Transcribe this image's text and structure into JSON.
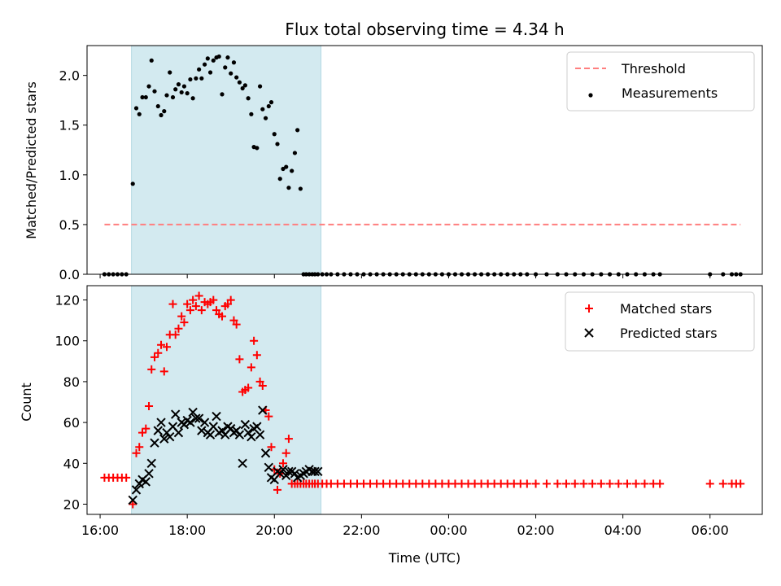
{
  "chart_data": [
    {
      "type": "scatter",
      "title": "Flux total observing time = 4.34 h",
      "xlabel": "",
      "ylabel": "Matched/Predicted stars",
      "x_unit": "hours since 16:00 UTC",
      "xlim": [
        -0.3,
        15.2
      ],
      "ylim": [
        0.0,
        2.3
      ],
      "y_ticks": [
        0.0,
        0.5,
        1.0,
        1.5,
        2.0
      ],
      "y_tick_labels": [
        "0.0",
        "0.5",
        "1.0",
        "1.5",
        "2.0"
      ],
      "x_ticks": [
        0,
        2,
        4,
        6,
        8,
        10,
        12,
        14
      ],
      "shaded_region": {
        "x_start": 0.72,
        "x_end": 5.07,
        "color": "#d3eaf0"
      },
      "legend_position": "top-right",
      "threshold": {
        "name": "Threshold",
        "y": 0.5,
        "x_start": 0.1,
        "x_end": 14.7,
        "color": "#ff7f7f",
        "style": "dashed"
      },
      "series": [
        {
          "name": "Measurements",
          "marker": "dot",
          "color": "#000000",
          "x": [
            0.1,
            0.2,
            0.3,
            0.4,
            0.5,
            0.6,
            0.75,
            0.83,
            0.9,
            0.97,
            1.05,
            1.12,
            1.18,
            1.25,
            1.33,
            1.4,
            1.47,
            1.53,
            1.6,
            1.67,
            1.73,
            1.8,
            1.87,
            1.93,
            2.0,
            2.07,
            2.13,
            2.2,
            2.27,
            2.33,
            2.4,
            2.47,
            2.53,
            2.6,
            2.67,
            2.73,
            2.8,
            2.87,
            2.93,
            3.0,
            3.07,
            3.13,
            3.2,
            3.27,
            3.33,
            3.4,
            3.47,
            3.53,
            3.6,
            3.67,
            3.73,
            3.8,
            3.87,
            3.93,
            4.0,
            4.07,
            4.13,
            4.2,
            4.27,
            4.33,
            4.4,
            4.47,
            4.53,
            4.6,
            4.67,
            4.73,
            4.8,
            4.87,
            4.93,
            5.0,
            5.1,
            5.2,
            5.3,
            5.45,
            5.6,
            5.75,
            5.9,
            6.05,
            6.2,
            6.35,
            6.5,
            6.65,
            6.8,
            6.95,
            7.1,
            7.25,
            7.4,
            7.55,
            7.7,
            7.85,
            8.0,
            8.15,
            8.3,
            8.45,
            8.6,
            8.75,
            8.9,
            9.05,
            9.2,
            9.35,
            9.5,
            9.65,
            9.8,
            10.0,
            10.25,
            10.5,
            10.7,
            10.9,
            11.1,
            11.3,
            11.5,
            11.7,
            11.9,
            12.1,
            12.3,
            12.5,
            12.7,
            12.85,
            14.0,
            14.3,
            14.5,
            14.6,
            14.7
          ],
          "y": [
            0,
            0,
            0,
            0,
            0,
            0,
            0.91,
            1.67,
            1.61,
            1.78,
            1.78,
            1.89,
            2.15,
            1.84,
            1.69,
            1.6,
            1.64,
            1.8,
            2.03,
            1.78,
            1.86,
            1.91,
            1.83,
            1.89,
            1.82,
            1.96,
            1.77,
            1.97,
            2.06,
            1.97,
            2.11,
            2.17,
            2.03,
            2.15,
            2.18,
            2.19,
            1.81,
            2.08,
            2.18,
            2.02,
            2.13,
            1.98,
            1.93,
            1.87,
            1.9,
            1.77,
            1.61,
            1.28,
            1.27,
            1.89,
            1.66,
            1.57,
            1.69,
            1.73,
            1.41,
            1.31,
            0.96,
            1.06,
            1.08,
            0.87,
            1.04,
            1.22,
            1.45,
            0.86,
            0,
            0,
            0,
            0,
            0,
            0,
            0,
            0,
            0,
            0,
            0,
            0,
            0,
            0,
            0,
            0,
            0,
            0,
            0,
            0,
            0,
            0,
            0,
            0,
            0,
            0,
            0,
            0,
            0,
            0,
            0,
            0,
            0,
            0,
            0,
            0,
            0,
            0,
            0,
            0,
            0,
            0,
            0,
            0,
            0,
            0,
            0,
            0,
            0,
            0,
            0,
            0,
            0,
            0,
            0,
            0,
            0,
            0,
            0
          ]
        }
      ]
    },
    {
      "type": "scatter",
      "title": "",
      "xlabel": "Time (UTC)",
      "ylabel": "Count",
      "x_unit": "hours since 16:00 UTC",
      "xlim": [
        -0.3,
        15.2
      ],
      "ylim": [
        15,
        127
      ],
      "y_ticks": [
        20,
        40,
        60,
        80,
        100,
        120
      ],
      "y_tick_labels": [
        "20",
        "40",
        "60",
        "80",
        "100",
        "120"
      ],
      "x_ticks": [
        0,
        2,
        4,
        6,
        8,
        10,
        12,
        14
      ],
      "x_tick_labels": [
        "16:00",
        "18:00",
        "20:00",
        "22:00",
        "00:00",
        "02:00",
        "04:00",
        "06:00"
      ],
      "shaded_region": {
        "x_start": 0.72,
        "x_end": 5.07,
        "color": "#d3eaf0"
      },
      "legend_position": "top-right",
      "series": [
        {
          "name": "Matched stars",
          "marker": "plus",
          "color": "#ff0000",
          "x": [
            0.1,
            0.2,
            0.3,
            0.4,
            0.5,
            0.6,
            0.75,
            0.83,
            0.9,
            0.97,
            1.05,
            1.12,
            1.18,
            1.25,
            1.33,
            1.4,
            1.47,
            1.53,
            1.6,
            1.67,
            1.73,
            1.8,
            1.87,
            1.93,
            2.0,
            2.07,
            2.13,
            2.2,
            2.27,
            2.33,
            2.4,
            2.47,
            2.53,
            2.6,
            2.67,
            2.73,
            2.8,
            2.87,
            2.93,
            3.0,
            3.07,
            3.13,
            3.2,
            3.27,
            3.33,
            3.4,
            3.47,
            3.53,
            3.6,
            3.67,
            3.73,
            3.8,
            3.87,
            3.93,
            4.0,
            4.07,
            4.13,
            4.2,
            4.27,
            4.33,
            4.4,
            4.47,
            4.53,
            4.6,
            4.67,
            4.73,
            4.8,
            4.87,
            4.93,
            5.0,
            5.1,
            5.2,
            5.3,
            5.45,
            5.6,
            5.75,
            5.9,
            6.05,
            6.2,
            6.35,
            6.5,
            6.65,
            6.8,
            6.95,
            7.1,
            7.25,
            7.4,
            7.55,
            7.7,
            7.85,
            8.0,
            8.15,
            8.3,
            8.45,
            8.6,
            8.75,
            8.9,
            9.05,
            9.2,
            9.35,
            9.5,
            9.65,
            9.8,
            10.0,
            10.25,
            10.5,
            10.7,
            10.9,
            11.1,
            11.3,
            11.5,
            11.7,
            11.9,
            12.1,
            12.3,
            12.5,
            12.7,
            12.85,
            14.0,
            14.3,
            14.5,
            14.6,
            14.7
          ],
          "y": [
            33,
            33,
            33,
            33,
            33,
            33,
            20,
            45,
            48,
            55,
            57,
            68,
            86,
            92,
            94,
            98,
            85,
            97,
            103,
            118,
            103,
            106,
            112,
            109,
            118,
            115,
            120,
            117,
            122,
            115,
            119,
            118,
            119,
            120,
            115,
            113,
            112,
            117,
            118,
            120,
            110,
            108,
            91,
            75,
            76,
            77,
            87,
            100,
            93,
            80,
            78,
            66,
            63,
            48,
            37,
            27,
            35,
            40,
            45,
            52,
            30,
            30,
            30,
            30,
            30,
            30,
            30,
            30,
            30,
            30,
            30,
            30,
            30,
            30,
            30,
            30,
            30,
            30,
            30,
            30,
            30,
            30,
            30,
            30,
            30,
            30,
            30,
            30,
            30,
            30,
            30,
            30,
            30,
            30,
            30,
            30,
            30,
            30,
            30,
            30,
            30,
            30,
            30,
            30,
            30,
            30,
            30,
            30,
            30,
            30,
            30,
            30,
            30,
            30,
            30,
            30,
            30,
            30,
            30,
            30,
            30,
            30,
            30
          ]
        },
        {
          "name": "Predicted stars",
          "marker": "x",
          "color": "#000000",
          "x": [
            0.75,
            0.83,
            0.9,
            0.97,
            1.05,
            1.12,
            1.18,
            1.25,
            1.33,
            1.4,
            1.47,
            1.53,
            1.6,
            1.67,
            1.73,
            1.8,
            1.87,
            1.93,
            2.0,
            2.07,
            2.13,
            2.2,
            2.27,
            2.33,
            2.4,
            2.47,
            2.53,
            2.6,
            2.67,
            2.73,
            2.8,
            2.87,
            2.93,
            3.0,
            3.07,
            3.13,
            3.2,
            3.27,
            3.33,
            3.4,
            3.47,
            3.53,
            3.6,
            3.67,
            3.73,
            3.8,
            3.87,
            3.93,
            4.0,
            4.07,
            4.13,
            4.2,
            4.27,
            4.33,
            4.4,
            4.47,
            4.53,
            4.6,
            4.67,
            4.73,
            4.8,
            4.87,
            4.93,
            5.0
          ],
          "y": [
            22,
            27,
            30,
            32,
            31,
            35,
            40,
            50,
            56,
            60,
            52,
            55,
            53,
            58,
            64,
            55,
            60,
            59,
            61,
            60,
            65,
            62,
            62,
            56,
            60,
            55,
            54,
            58,
            63,
            55,
            56,
            54,
            58,
            57,
            55,
            56,
            54,
            40,
            59,
            55,
            53,
            57,
            58,
            54,
            66,
            45,
            38,
            33,
            32,
            36,
            35,
            37,
            34,
            36,
            36,
            35,
            33,
            34,
            35,
            36,
            37,
            36,
            36,
            36
          ]
        }
      ]
    }
  ]
}
